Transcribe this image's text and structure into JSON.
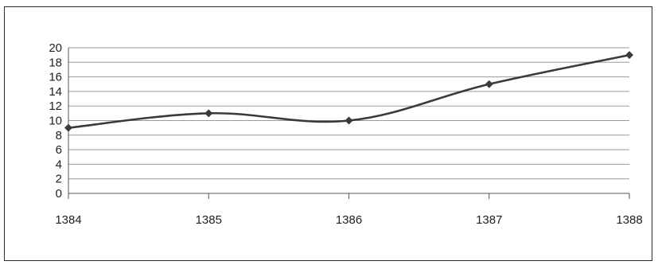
{
  "chart_data": {
    "type": "line",
    "title": "",
    "xlabel": "",
    "ylabel": "",
    "categories": [
      "1384",
      "1385",
      "1386",
      "1387",
      "1388"
    ],
    "series": [
      {
        "values": [
          9,
          11,
          10,
          15,
          19
        ]
      }
    ],
    "ylim": [
      0,
      20
    ],
    "yticks": [
      "0",
      "2",
      "4",
      "6",
      "8",
      "10",
      "12",
      "14",
      "16",
      "18",
      "20"
    ],
    "grid": "horizontal",
    "legend": "none",
    "smooth": true,
    "marker": "diamond",
    "colors": {
      "line": "#3a3a3a",
      "grid": "#9a9a9a",
      "axis": "#555555"
    }
  }
}
